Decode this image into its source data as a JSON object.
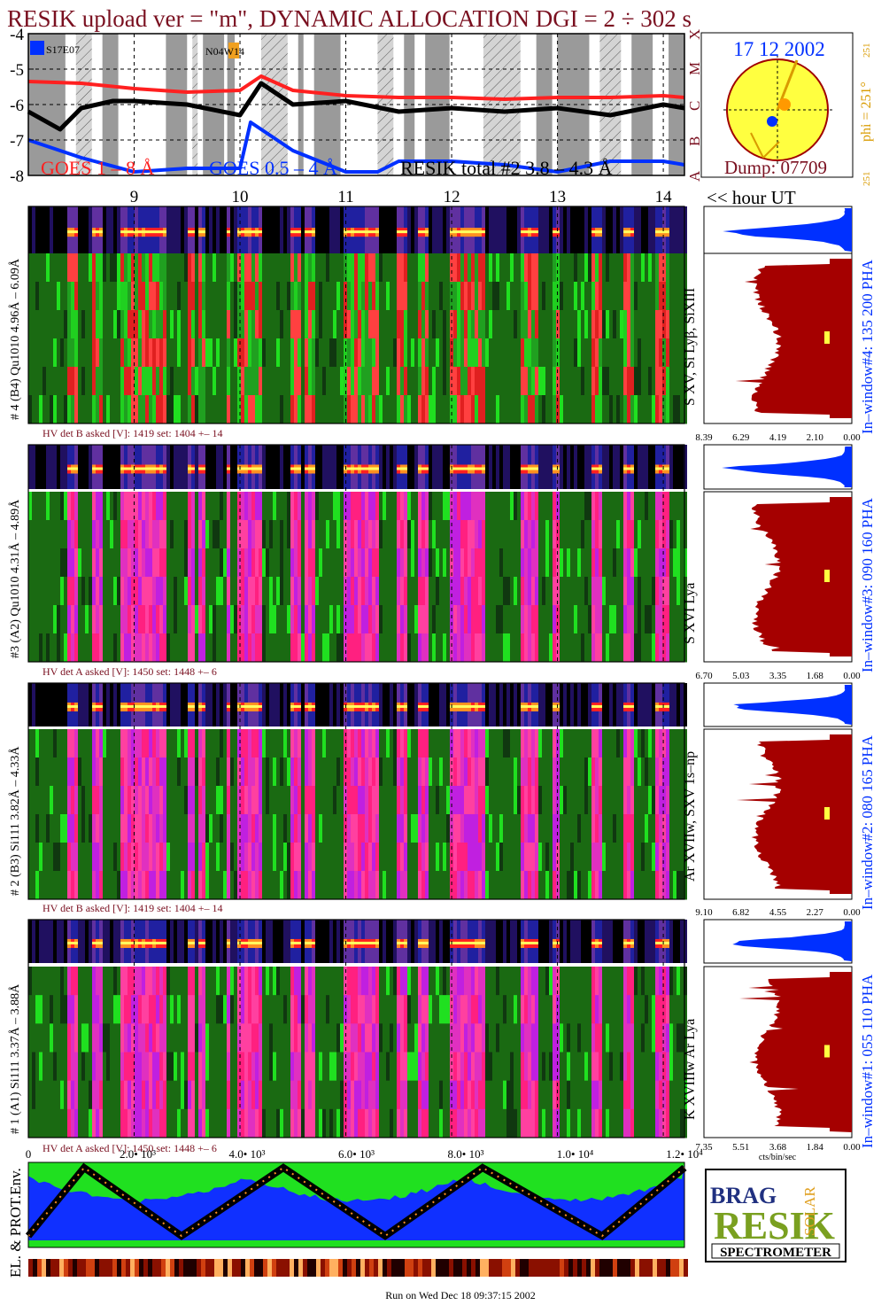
{
  "title": "RESIK upload ver = \"m\", DYNAMIC ALLOCATION  DGI =   2 ÷ 302 s",
  "footer": "Run on Wed Dec 18 09:37:15 2002",
  "colors": {
    "title": "#7a1020",
    "blue": "#0030ff",
    "red": "#ff2020",
    "dark_red": "#a50000",
    "green": "#1a6a12",
    "bright_green": "#20e020",
    "magenta": "#e020c0",
    "pink": "#ff1060",
    "yellow": "#ffff40",
    "gray": "#9a9a9a",
    "gold": "#d99b00"
  },
  "goes": {
    "y_ticks": [
      "-4",
      "-5",
      "-6",
      "-7",
      "-8"
    ],
    "class_letters": [
      "X",
      "M",
      "C",
      "B",
      "A"
    ],
    "legend_goes_long": "GOES 1 – 8 Å",
    "legend_goes_short": "GOES 0.5 – 4 Å",
    "legend_resik": "RESIK total #2 3.8 – 4.3 Å",
    "tag_left": "S17E07",
    "tag_mid": "N04W14"
  },
  "sun": {
    "date": "17 12 2002",
    "dump": "Dump: 07709",
    "phi_label": "phi = 251°",
    "phi_small_top": "251",
    "phi_small_bottom": "251"
  },
  "hours_axis": {
    "ticks": [
      "9",
      "10",
      "11",
      "12",
      "13",
      "14"
    ],
    "label": "<< hour UT"
  },
  "channels": [
    {
      "left_label": "# 4 (B4) Qu1010 4.96Å – 6.09Å",
      "hv_text": "HV det B asked [V]:  1419 set:  1404 +–   14",
      "line_label": "S XV, Si Lyβ, SiXIII",
      "window_label": "In–window#4:  135 200 PHA",
      "x_ticks": [
        "8.39",
        "6.29",
        "4.19",
        "2.10",
        "0.00"
      ],
      "profile_seed": 4
    },
    {
      "left_label": "#3 (A2) Qu1010  4.31Å – 4.89Å",
      "hv_text": "HV det A asked [V]:  1450 set:  1448 +–    6",
      "line_label": "S XVI Lya",
      "window_label": "In–window#3:  090 160 PHA",
      "x_ticks": [
        "6.70",
        "5.03",
        "3.35",
        "1.68",
        "0.00"
      ],
      "profile_seed": 3
    },
    {
      "left_label": "# 2 (B3) Si111  3.82Å – 4.33Å",
      "hv_text": "HV det B asked [V]:  1419 set:  1404 +–   14",
      "line_label": "Ar XVIIw, SXV 1s–np",
      "window_label": "In–window#2:  080 165 PHA",
      "x_ticks": [
        "9.10",
        "6.82",
        "4.55",
        "2.27",
        "0.00"
      ],
      "profile_seed": 2
    },
    {
      "left_label": "# 1 (A1) Si111  3.37Å – 3.88Å",
      "hv_text": "HV det A asked [V]:  1450 set:  1448 +–   6",
      "line_label": "K XVIIIw  Ar Lya",
      "window_label": "In–window#1:  055 110 PHA",
      "x_ticks": [
        "7.35",
        "5.51",
        "3.68",
        "1.84",
        "0.00"
      ],
      "x_unit": "cts/bin/sec",
      "profile_seed": 1
    }
  ],
  "bottom_axis": {
    "ticks": [
      "0",
      "2.0• 10³",
      "4.0• 10³",
      "6.0• 10³",
      "8.0• 10³",
      "1.0• 10⁴",
      "1.2• 10⁴"
    ]
  },
  "env_label": "EL. & PROT.Env.",
  "logo": {
    "big": "RESIK",
    "letters_left": "BRAG",
    "letters_right": "SOLAR",
    "banner": "SPECTROMETER"
  },
  "chart_data": {
    "type": "line",
    "title": "RESIK upload ver = \"m\", DYNAMIC ALLOCATION  DGI =   2 ÷ 302 s",
    "xlabel": "hour UT",
    "ylabel": "",
    "x_range": [
      8.0,
      14.2
    ],
    "ylim": [
      -8,
      -4
    ],
    "y_scale": "log10 flux",
    "series": [
      {
        "name": "GOES 1 – 8 Å",
        "color": "#ff2020",
        "x": [
          8.0,
          8.5,
          9.0,
          9.5,
          10.0,
          10.2,
          10.5,
          11.0,
          11.5,
          12.0,
          12.5,
          13.0,
          13.5,
          14.0,
          14.2
        ],
        "y": [
          -5.35,
          -5.4,
          -5.55,
          -5.65,
          -5.6,
          -5.2,
          -5.6,
          -5.75,
          -5.8,
          -5.8,
          -5.85,
          -5.8,
          -5.8,
          -5.75,
          -5.8
        ]
      },
      {
        "name": "GOES 0.5 – 4 Å",
        "color": "#0030ff",
        "x": [
          8.0,
          8.5,
          9.0,
          9.5,
          10.0,
          10.1,
          10.5,
          11.0,
          11.3,
          11.5,
          12.0,
          12.5,
          13.0,
          13.5,
          14.0,
          14.2
        ],
        "y": [
          -7.0,
          -7.5,
          -7.9,
          -7.8,
          -7.8,
          -6.5,
          -7.3,
          -7.9,
          -7.9,
          -7.6,
          -7.6,
          -7.7,
          -7.9,
          -7.6,
          -7.6,
          -7.7
        ]
      },
      {
        "name": "RESIK total #2 3.8 – 4.3 Å",
        "color": "#000000",
        "x": [
          8.0,
          8.3,
          8.5,
          8.8,
          9.0,
          9.5,
          10.0,
          10.2,
          10.5,
          11.0,
          11.5,
          12.0,
          12.5,
          13.0,
          13.5,
          14.0,
          14.2
        ],
        "y": [
          -6.2,
          -6.7,
          -6.1,
          -5.9,
          -5.9,
          -6.0,
          -6.3,
          -5.4,
          -6.0,
          -5.9,
          -6.2,
          -6.1,
          -6.2,
          -6.1,
          -6.3,
          -6.0,
          -6.1
        ]
      }
    ],
    "shaded_intervals_hours": [
      [
        8.0,
        8.35
      ],
      [
        8.45,
        8.6
      ],
      [
        8.7,
        8.85
      ],
      [
        9.3,
        9.5
      ],
      [
        9.55,
        9.6
      ],
      [
        9.65,
        9.85
      ],
      [
        9.88,
        9.95
      ],
      [
        10.2,
        10.45
      ],
      [
        10.55,
        10.6
      ],
      [
        10.7,
        10.95
      ],
      [
        11.3,
        11.45
      ],
      [
        11.55,
        11.65
      ],
      [
        11.75,
        11.98
      ],
      [
        12.3,
        12.65
      ],
      [
        12.8,
        12.95
      ],
      [
        13.0,
        13.3
      ],
      [
        13.4,
        13.6
      ],
      [
        13.7,
        13.9
      ],
      [
        14.05,
        14.2
      ]
    ],
    "sun_position_phi_deg": 251,
    "panels": [
      {
        "type": "heatmap",
        "name": "# 4 (B4) Qu1010 4.96Å – 6.09Å",
        "profile_xmax": 8.39
      },
      {
        "type": "heatmap",
        "name": "#3 (A2) Qu1010  4.31Å – 4.89Å",
        "profile_xmax": 6.7
      },
      {
        "type": "heatmap",
        "name": "# 2 (B3) Si111  3.82Å – 4.33Å",
        "profile_xmax": 9.1
      },
      {
        "type": "heatmap",
        "name": "# 1 (A1) Si111  3.37Å – 3.88Å",
        "profile_xmax": 7.35
      }
    ],
    "seconds_axis": [
      0,
      2000,
      4000,
      6000,
      8000,
      10000,
      12000
    ]
  }
}
